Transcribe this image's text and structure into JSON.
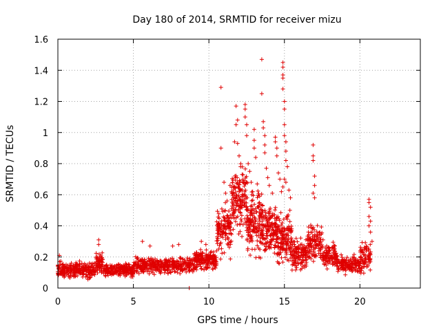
{
  "chart_data": {
    "type": "scatter",
    "title": "Day 180 of 2014, SRMTID for receiver mizu",
    "xlabel": "GPS time / hours",
    "ylabel": "SRMTID / TECUs",
    "xlim": [
      0,
      24
    ],
    "ylim": [
      0,
      1.6
    ],
    "xticks": [
      0,
      5,
      10,
      15,
      20
    ],
    "yticks": [
      0,
      0.2,
      0.4,
      0.6,
      0.8,
      1,
      1.2,
      1.4,
      1.6
    ],
    "ytick_labels": [
      "0",
      "0.2",
      "0.4",
      "0.6",
      "0.8",
      "1",
      "1.2",
      "1.4",
      "1.6"
    ],
    "grid": true,
    "marker": "+",
    "colors": {
      "series": "#e00000",
      "grid": "#a0a0a0",
      "frame": "#000000"
    },
    "series": [
      {
        "name": "SRMTID",
        "segments": [
          {
            "x_start": 0.0,
            "x_end": 2.5,
            "base": 0.11,
            "spread": 0.06,
            "n": 260
          },
          {
            "x_start": 2.5,
            "x_end": 3.0,
            "base": 0.15,
            "spread": 0.1,
            "n": 60
          },
          {
            "x_start": 3.0,
            "x_end": 5.0,
            "base": 0.11,
            "spread": 0.05,
            "n": 200
          },
          {
            "x_start": 5.0,
            "x_end": 9.0,
            "base": 0.14,
            "spread": 0.06,
            "n": 380
          },
          {
            "x_start": 9.0,
            "x_end": 10.5,
            "base": 0.17,
            "spread": 0.08,
            "n": 170
          },
          {
            "x_start": 10.5,
            "x_end": 11.5,
            "base": 0.35,
            "spread": 0.2,
            "n": 130
          },
          {
            "x_start": 11.5,
            "x_end": 12.5,
            "base": 0.55,
            "spread": 0.25,
            "n": 150
          },
          {
            "x_start": 12.5,
            "x_end": 13.5,
            "base": 0.4,
            "spread": 0.25,
            "n": 150
          },
          {
            "x_start": 13.5,
            "x_end": 14.5,
            "base": 0.35,
            "spread": 0.2,
            "n": 150
          },
          {
            "x_start": 14.5,
            "x_end": 15.5,
            "base": 0.3,
            "spread": 0.2,
            "n": 150
          },
          {
            "x_start": 15.5,
            "x_end": 16.5,
            "base": 0.2,
            "spread": 0.12,
            "n": 120
          },
          {
            "x_start": 16.5,
            "x_end": 17.5,
            "base": 0.28,
            "spread": 0.14,
            "n": 120
          },
          {
            "x_start": 17.5,
            "x_end": 18.5,
            "base": 0.2,
            "spread": 0.1,
            "n": 110
          },
          {
            "x_start": 18.5,
            "x_end": 20.0,
            "base": 0.14,
            "spread": 0.07,
            "n": 150
          },
          {
            "x_start": 20.0,
            "x_end": 20.7,
            "base": 0.18,
            "spread": 0.12,
            "n": 80
          }
        ],
        "points": [
          [
            10.8,
            1.29
          ],
          [
            10.8,
            0.9
          ],
          [
            13.5,
            1.47
          ],
          [
            13.5,
            1.25
          ],
          [
            14.9,
            1.45
          ],
          [
            14.9,
            1.42
          ],
          [
            14.9,
            1.37
          ],
          [
            14.9,
            1.35
          ],
          [
            14.9,
            1.28
          ],
          [
            15.0,
            1.2
          ],
          [
            15.0,
            1.15
          ],
          [
            11.8,
            1.17
          ],
          [
            11.9,
            1.08
          ],
          [
            11.8,
            1.05
          ],
          [
            11.7,
            0.94
          ],
          [
            11.9,
            0.93
          ],
          [
            12.4,
            1.18
          ],
          [
            12.4,
            1.15
          ],
          [
            12.4,
            1.1
          ],
          [
            12.5,
            1.05
          ],
          [
            12.5,
            0.98
          ],
          [
            13.0,
            1.02
          ],
          [
            13.0,
            0.95
          ],
          [
            13.0,
            0.9
          ],
          [
            13.1,
            0.84
          ],
          [
            13.6,
            1.07
          ],
          [
            13.6,
            1.03
          ],
          [
            13.7,
            0.98
          ],
          [
            13.7,
            0.92
          ],
          [
            13.7,
            0.87
          ],
          [
            14.4,
            0.97
          ],
          [
            14.4,
            0.94
          ],
          [
            14.5,
            0.9
          ],
          [
            14.5,
            0.85
          ],
          [
            15.0,
            1.05
          ],
          [
            15.0,
            0.98
          ],
          [
            15.1,
            0.94
          ],
          [
            15.1,
            0.88
          ],
          [
            15.1,
            0.82
          ],
          [
            15.2,
            0.78
          ],
          [
            15.0,
            0.7
          ],
          [
            15.1,
            0.68
          ],
          [
            14.9,
            0.65
          ],
          [
            16.9,
            0.92
          ],
          [
            16.9,
            0.85
          ],
          [
            16.9,
            0.82
          ],
          [
            17.0,
            0.72
          ],
          [
            17.0,
            0.66
          ],
          [
            16.9,
            0.61
          ],
          [
            17.0,
            0.58
          ],
          [
            11.0,
            0.68
          ],
          [
            11.1,
            0.61
          ],
          [
            11.2,
            0.56
          ],
          [
            11.4,
            0.66
          ],
          [
            11.5,
            0.62
          ],
          [
            12.0,
            0.85
          ],
          [
            12.1,
            0.78
          ],
          [
            12.2,
            0.73
          ],
          [
            12.3,
            0.68
          ],
          [
            12.6,
            0.8
          ],
          [
            12.7,
            0.75
          ],
          [
            12.8,
            0.68
          ],
          [
            12.9,
            0.62
          ],
          [
            13.8,
            0.77
          ],
          [
            13.9,
            0.71
          ],
          [
            14.0,
            0.66
          ],
          [
            14.2,
            0.61
          ],
          [
            14.6,
            0.74
          ],
          [
            14.7,
            0.7
          ],
          [
            14.8,
            0.62
          ],
          [
            15.3,
            0.63
          ],
          [
            15.4,
            0.58
          ],
          [
            20.6,
            0.57
          ],
          [
            20.6,
            0.55
          ],
          [
            20.7,
            0.52
          ],
          [
            20.6,
            0.46
          ],
          [
            20.7,
            0.43
          ],
          [
            20.6,
            0.4
          ],
          [
            20.7,
            0.36
          ],
          [
            20.8,
            0.3
          ],
          [
            0.1,
            0.21
          ],
          [
            2.7,
            0.31
          ],
          [
            2.7,
            0.28
          ],
          [
            5.6,
            0.3
          ],
          [
            7.6,
            0.27
          ],
          [
            6.1,
            0.27
          ],
          [
            8.0,
            0.28
          ],
          [
            9.5,
            0.3
          ],
          [
            9.8,
            0.28
          ],
          [
            8.7,
            0.0
          ]
        ]
      }
    ]
  }
}
